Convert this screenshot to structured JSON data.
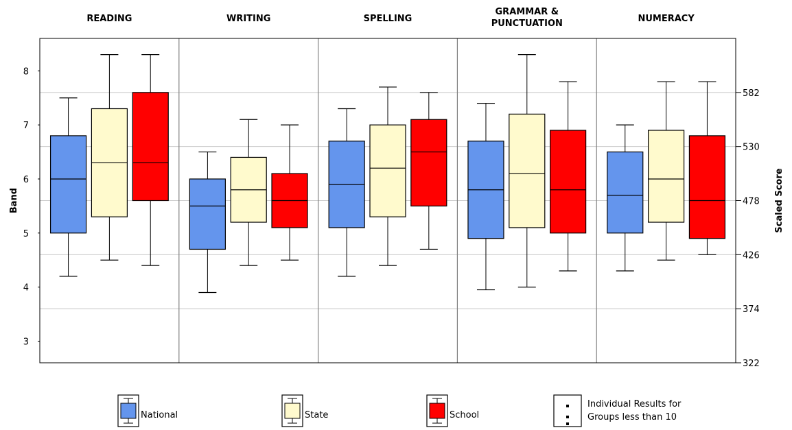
{
  "chart_data": {
    "type": "boxplot",
    "panels": [
      "READING",
      "WRITING",
      "SPELLING",
      "GRAMMAR &|PUNCTUATION",
      "NUMERACY"
    ],
    "series_names": [
      "National",
      "State",
      "School"
    ],
    "colors": {
      "National": "#6495ed",
      "State": "#fffacd",
      "School": "#ff0000"
    },
    "ylabel": "Band",
    "y2label": "Scaled Score",
    "ylim": [
      2.6,
      8.6
    ],
    "y_ticks": [
      3,
      4,
      5,
      6,
      7,
      8
    ],
    "y2_ticks": [
      {
        "band": 2.6,
        "label": "322"
      },
      {
        "band": 3.6,
        "label": "374"
      },
      {
        "band": 4.6,
        "label": "426"
      },
      {
        "band": 5.6,
        "label": "478"
      },
      {
        "band": 6.6,
        "label": "530"
      },
      {
        "band": 7.6,
        "label": "582"
      }
    ],
    "grid": true,
    "boxes": [
      [
        {
          "min": 4.2,
          "q1": 5.0,
          "median": 6.0,
          "q3": 6.8,
          "max": 7.5
        },
        {
          "min": 4.5,
          "q1": 5.3,
          "median": 6.3,
          "q3": 7.3,
          "max": 8.3
        },
        {
          "min": 4.4,
          "q1": 5.6,
          "median": 6.3,
          "q3": 7.6,
          "max": 8.3
        }
      ],
      [
        {
          "min": 3.9,
          "q1": 4.7,
          "median": 5.5,
          "q3": 6.0,
          "max": 6.5
        },
        {
          "min": 4.4,
          "q1": 5.2,
          "median": 5.8,
          "q3": 6.4,
          "max": 7.1
        },
        {
          "min": 4.5,
          "q1": 5.1,
          "median": 5.6,
          "q3": 6.1,
          "max": 7.0
        }
      ],
      [
        {
          "min": 4.2,
          "q1": 5.1,
          "median": 5.9,
          "q3": 6.7,
          "max": 7.3
        },
        {
          "min": 4.4,
          "q1": 5.3,
          "median": 6.2,
          "q3": 7.0,
          "max": 7.7
        },
        {
          "min": 4.7,
          "q1": 5.5,
          "median": 6.5,
          "q3": 7.1,
          "max": 7.6
        }
      ],
      [
        {
          "min": 3.95,
          "q1": 4.9,
          "median": 5.8,
          "q3": 6.7,
          "max": 7.4
        },
        {
          "min": 4.0,
          "q1": 5.1,
          "median": 6.1,
          "q3": 7.2,
          "max": 8.3
        },
        {
          "min": 4.3,
          "q1": 5.0,
          "median": 5.8,
          "q3": 6.9,
          "max": 7.8
        }
      ],
      [
        {
          "min": 4.3,
          "q1": 5.0,
          "median": 5.7,
          "q3": 6.5,
          "max": 7.0
        },
        {
          "min": 4.5,
          "q1": 5.2,
          "median": 6.0,
          "q3": 6.9,
          "max": 7.8
        },
        {
          "min": 4.6,
          "q1": 4.9,
          "median": 5.6,
          "q3": 6.8,
          "max": 7.8
        }
      ]
    ]
  },
  "legend": {
    "items": [
      {
        "label": "National",
        "color": "#6495ed"
      },
      {
        "label": "State",
        "color": "#fffacd"
      },
      {
        "label": "School",
        "color": "#ff0000"
      }
    ],
    "note_line1": "Individual Results for",
    "note_line2": "Groups less than 10"
  }
}
